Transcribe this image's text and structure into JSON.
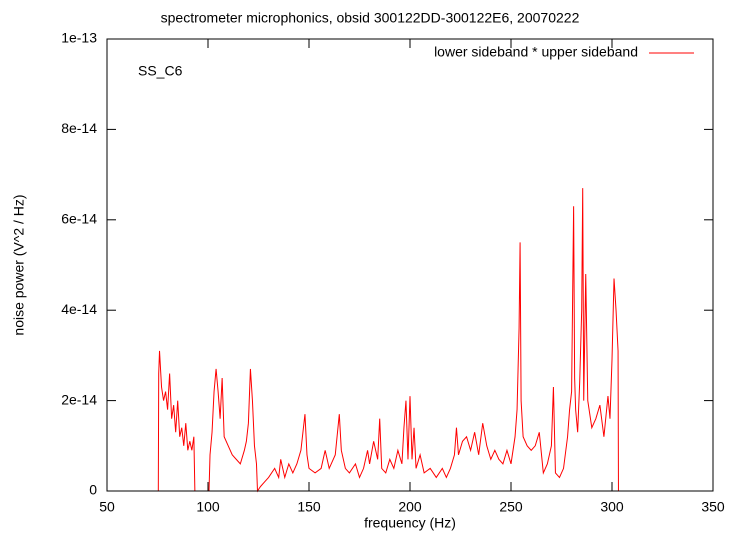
{
  "chart_data": {
    "type": "line",
    "title": "spectrometer microphonics, obsid 300122DD-300122E6, 20070222",
    "xlabel": "frequency (Hz)",
    "ylabel": "noise power (V^2 / Hz)",
    "annotation": "SS_C6",
    "legend": "top-right",
    "xlim": [
      50,
      350
    ],
    "xticks": [
      50,
      100,
      150,
      200,
      250,
      300,
      350
    ],
    "ylim": [
      0,
      1e-13
    ],
    "yticks": [
      0,
      2e-14,
      4e-14,
      6e-14,
      8e-14,
      1e-13
    ],
    "x": [
      50,
      75.4,
      75.6,
      76,
      77,
      78,
      79,
      80,
      81,
      82,
      83,
      84,
      85,
      86,
      87,
      88,
      89,
      90,
      91,
      92,
      93,
      93.5,
      100.5,
      101,
      102,
      103,
      104,
      105,
      106,
      107,
      108,
      110,
      112,
      114,
      116,
      118,
      119,
      120,
      121,
      122,
      123,
      124,
      124.5,
      126,
      128,
      130,
      133,
      135,
      136,
      138,
      140,
      142,
      144,
      146,
      147,
      148,
      149,
      150,
      153,
      156,
      158,
      160,
      163,
      165,
      166,
      168,
      170,
      173,
      175,
      177,
      179,
      180,
      182,
      184,
      185,
      186,
      188,
      190,
      192,
      194,
      196,
      197,
      198,
      199,
      200,
      201,
      202,
      203,
      205,
      207,
      210,
      213,
      216,
      218,
      220,
      222,
      223,
      224,
      226,
      228,
      230,
      232,
      234,
      236,
      238,
      240,
      242,
      244,
      246,
      248,
      250,
      252,
      253,
      254,
      254.5,
      255,
      256,
      258,
      260,
      262,
      264,
      266,
      268,
      270,
      271,
      272,
      274,
      276,
      278,
      279,
      280,
      281,
      281.5,
      282,
      283,
      284,
      285,
      285.5,
      286,
      287,
      288,
      290,
      292,
      294,
      296,
      298,
      299,
      300,
      301,
      302,
      303,
      303.2,
      350
    ],
    "series": [
      {
        "name": "lower sideband * upper sideband",
        "color": "#ff0000",
        "values": [
          0,
          0,
          2.6e-14,
          3.1e-14,
          2.3e-14,
          2e-14,
          2.2e-14,
          1.8e-14,
          2.6e-14,
          1.6e-14,
          1.9e-14,
          1.3e-14,
          2e-14,
          1.2e-14,
          1.4e-14,
          1e-14,
          1.5e-14,
          9e-15,
          1.1e-14,
          9e-15,
          1.2e-14,
          0,
          0,
          8e-15,
          1.3e-14,
          2.2e-14,
          2.7e-14,
          2.2e-14,
          1.6e-14,
          2.5e-14,
          1.2e-14,
          1e-14,
          8e-15,
          7e-15,
          6e-15,
          9e-15,
          1.1e-14,
          1.5e-14,
          2.7e-14,
          2e-14,
          1e-14,
          6e-15,
          0,
          1e-15,
          2e-15,
          3e-15,
          5e-15,
          3e-15,
          7e-15,
          3e-15,
          6e-15,
          4e-15,
          6e-15,
          9e-15,
          1.3e-14,
          1.7e-14,
          8e-15,
          5e-15,
          4e-15,
          5e-15,
          9e-15,
          5e-15,
          8e-15,
          1.7e-14,
          9e-15,
          5e-15,
          4e-15,
          6e-15,
          3e-15,
          5e-15,
          9e-15,
          6e-15,
          1.1e-14,
          7e-15,
          1.6e-14,
          5e-15,
          4e-15,
          7e-15,
          5e-15,
          9e-15,
          6e-15,
          1.4e-14,
          2e-14,
          7e-15,
          2.1e-14,
          7e-15,
          1.4e-14,
          5e-15,
          8e-15,
          4e-15,
          5e-15,
          3e-15,
          5e-15,
          3e-15,
          5e-15,
          8e-15,
          1.4e-14,
          8e-15,
          1.1e-14,
          1.2e-14,
          9e-15,
          1.3e-14,
          8e-15,
          1.5e-14,
          1e-14,
          7e-15,
          9e-15,
          7e-15,
          6e-15,
          9e-15,
          6e-15,
          1.2e-14,
          1.8e-14,
          3.6e-14,
          5.5e-14,
          2e-14,
          1.2e-14,
          1e-14,
          9e-15,
          1e-14,
          1.3e-14,
          4e-15,
          6e-15,
          1e-14,
          2.3e-14,
          4e-15,
          3e-15,
          5e-15,
          1.2e-14,
          1.8e-14,
          2.2e-14,
          6.3e-14,
          2.5e-14,
          1.8e-14,
          1.3e-14,
          2.4e-14,
          4e-14,
          6.7e-14,
          2e-14,
          4.8e-14,
          2e-14,
          1.4e-14,
          1.6e-14,
          1.9e-14,
          1.2e-14,
          2.1e-14,
          1.6e-14,
          2.9e-14,
          4.7e-14,
          4e-14,
          3.1e-14,
          0,
          0
        ]
      }
    ]
  }
}
